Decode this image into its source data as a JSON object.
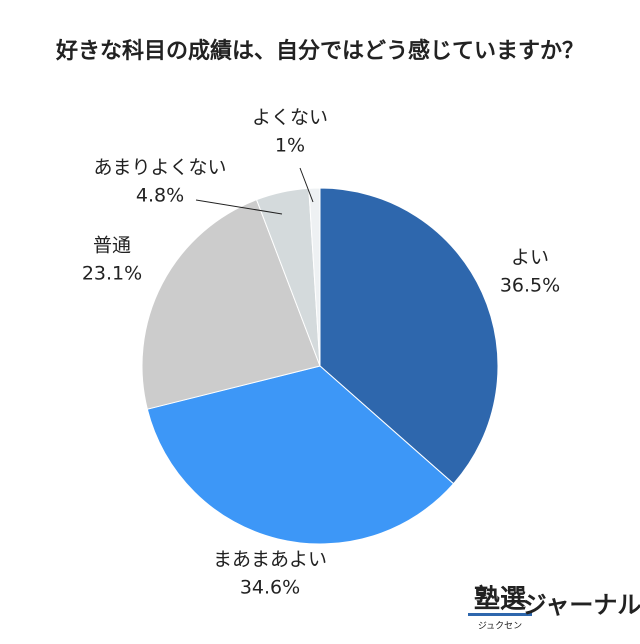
{
  "chart_data": {
    "type": "pie",
    "title": "好きな科目の成績は、自分ではどう感じていますか？",
    "categories": [
      "よい",
      "まあまあよい",
      "普通",
      "あまりよくない",
      "よくない"
    ],
    "values": [
      36.5,
      34.6,
      23.1,
      4.8,
      1
    ],
    "value_labels": [
      "36.5%",
      "34.6%",
      "23.1%",
      "4.8%",
      "1%"
    ],
    "colors": [
      "#2e67ad",
      "#3d97f7",
      "#cccccc",
      "#d4dadc",
      "#eef1f3"
    ]
  },
  "logo": {
    "main": "塾選",
    "sub": "ジュクセン",
    "suffix": "ジャーナル"
  }
}
